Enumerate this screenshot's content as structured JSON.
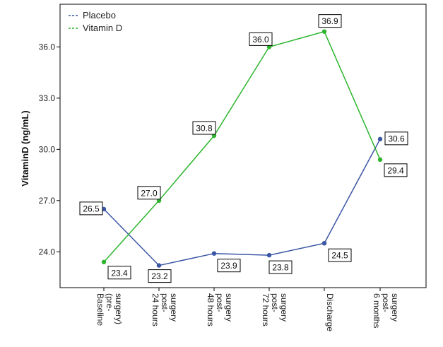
{
  "chart_data": {
    "type": "line",
    "ylabel": "VitaminD (ng/mL)",
    "xlabel": "",
    "categories": [
      [
        "Baseline",
        "(pre-",
        "surgery)"
      ],
      [
        "24 hours",
        "post-",
        "surgery"
      ],
      [
        "48 hours",
        "post-",
        "surgery"
      ],
      [
        "72 hours",
        "post-",
        "surgery"
      ],
      [
        "Discharge"
      ],
      [
        "6 months",
        "post-",
        "surgery"
      ]
    ],
    "yticks": [
      "24.0",
      "27.0",
      "30.0",
      "33.0",
      "36.0"
    ],
    "ylim": [
      21.9,
      38.5
    ],
    "grid": false,
    "legend_position": "top-left",
    "series": [
      {
        "name": "Placebo",
        "color": "#3a55a4",
        "values": [
          26.5,
          23.2,
          23.9,
          23.8,
          24.5,
          30.6
        ],
        "labels": [
          "26.5",
          "23.2",
          "23.9",
          "23.8",
          "24.5",
          "30.6"
        ]
      },
      {
        "name": "Vitamin D",
        "color": "#2db52d",
        "values": [
          23.4,
          27.0,
          30.8,
          36.0,
          36.9,
          29.4
        ],
        "labels": [
          "23.4",
          "27.0",
          "30.8",
          "36.0",
          "36.9",
          "29.4"
        ]
      }
    ]
  }
}
